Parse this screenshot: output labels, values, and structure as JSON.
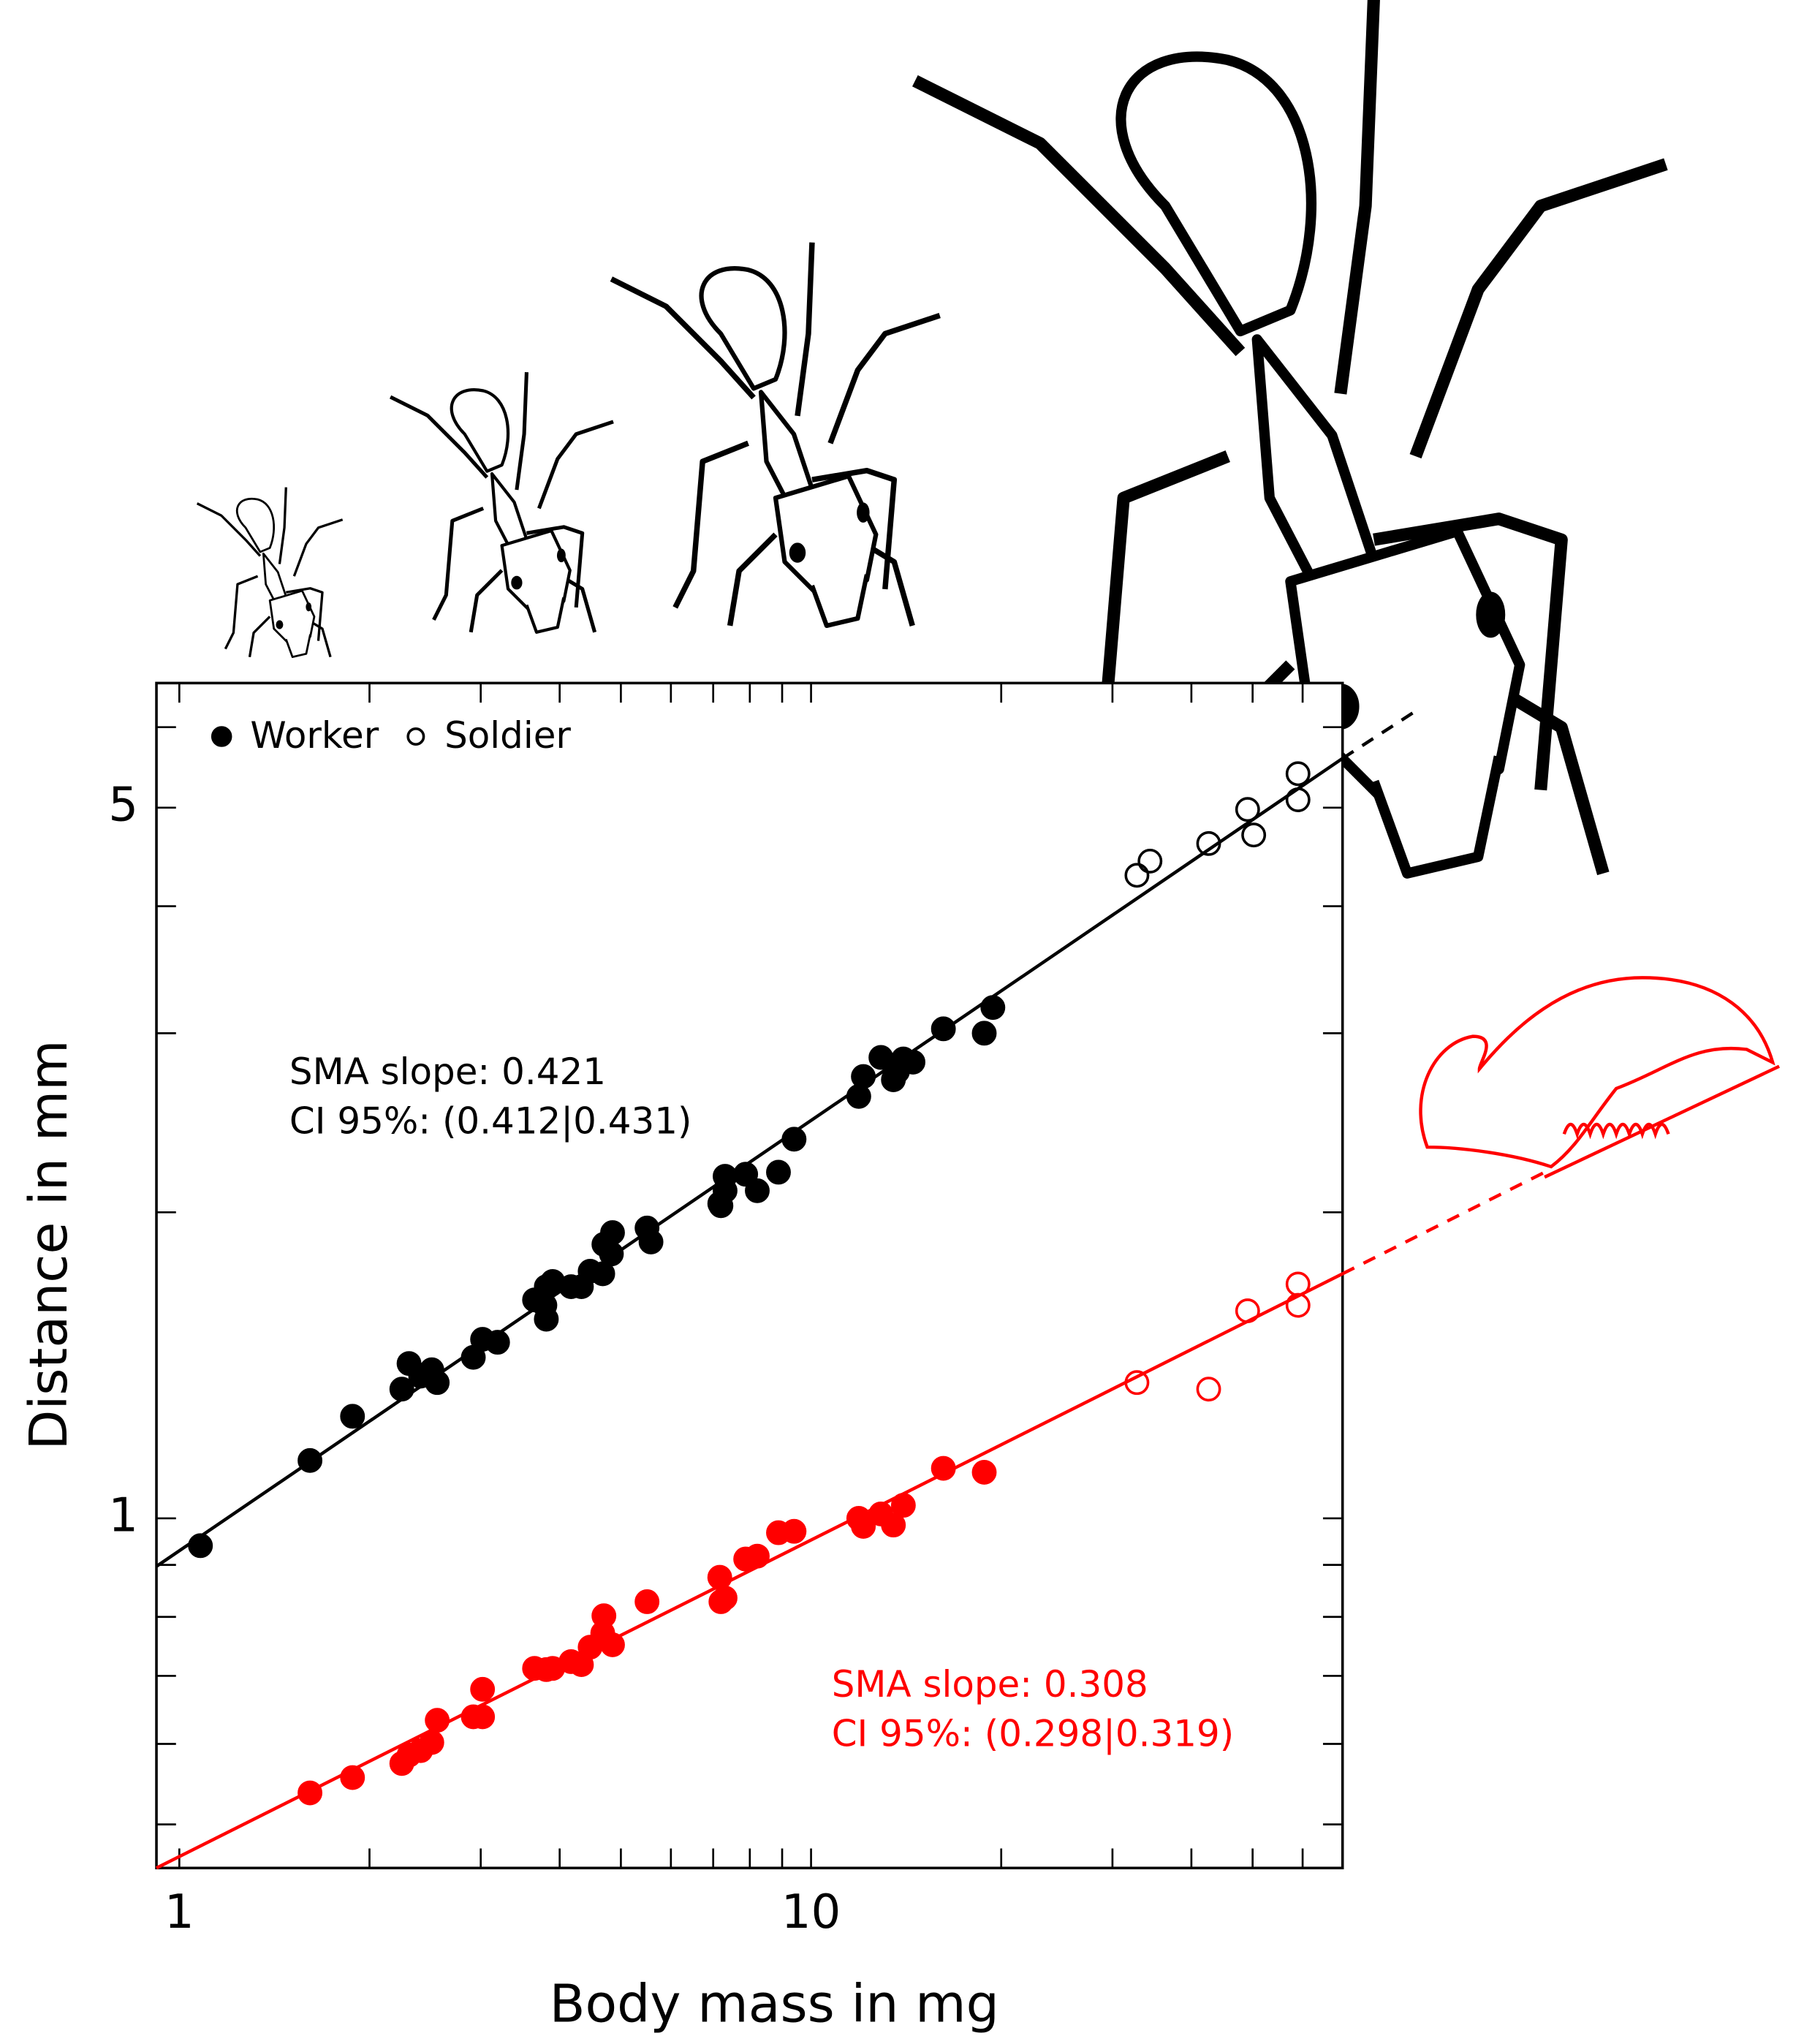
{
  "chart_data": {
    "type": "scatter",
    "xlabel": "Body mass in mg",
    "ylabel": "Distance in mm",
    "xscale": "log",
    "yscale": "log",
    "xlim": [
      0.92,
      69.4
    ],
    "ylim": [
      0.453,
      6.63
    ],
    "xticks": [
      1,
      10
    ],
    "yticks": [
      1,
      5
    ],
    "xminorticks": [
      2,
      3,
      4,
      5,
      6,
      7,
      8,
      9,
      20,
      30,
      40,
      50,
      60
    ],
    "yminorticks": [
      0.5,
      0.6,
      0.7,
      0.8,
      0.9,
      2,
      3,
      4,
      6
    ],
    "legend": [
      {
        "label": "Worker",
        "marker": "filled"
      },
      {
        "label": "Soldier",
        "marker": "open"
      }
    ],
    "series": [
      {
        "color": "#000000",
        "marker": "filled",
        "x": [
          1.08,
          1.61,
          1.88,
          2.25,
          2.31,
          2.41,
          2.51,
          2.56,
          2.92,
          3.02,
          3.19,
          3.65,
          3.81,
          3.9,
          3.81,
          3.79,
          4.17,
          4.33,
          4.47,
          4.68,
          4.7,
          4.85,
          4.83,
          5.5,
          5.58,
          7.17,
          7.31,
          7.31,
          7.2,
          7.88,
          8.22,
          8.88,
          9.4,
          11.9,
          12.1,
          12.9,
          13.5,
          13.7,
          14.0,
          14.5,
          16.2,
          18.8,
          19.4
        ],
        "y": [
          0.94,
          1.14,
          1.26,
          1.34,
          1.42,
          1.38,
          1.4,
          1.36,
          1.44,
          1.5,
          1.49,
          1.64,
          1.69,
          1.71,
          1.57,
          1.62,
          1.69,
          1.69,
          1.75,
          1.74,
          1.86,
          1.91,
          1.82,
          1.93,
          1.87,
          2.04,
          2.17,
          2.1,
          2.03,
          2.18,
          2.1,
          2.19,
          2.36,
          2.6,
          2.72,
          2.84,
          2.7,
          2.75,
          2.83,
          2.81,
          3.03,
          3.0,
          3.18
        ]
      },
      {
        "color": "#000000",
        "marker": "open",
        "x": [
          32.8,
          34.4,
          42.6,
          49.1,
          50.2,
          59.0,
          59.0
        ],
        "y": [
          4.29,
          4.43,
          4.61,
          4.98,
          4.7,
          5.4,
          5.09
        ]
      },
      {
        "color": "#ff0000",
        "marker": "filled",
        "x": [
          1.61,
          1.88,
          2.25,
          2.31,
          2.41,
          2.51,
          2.56,
          2.92,
          3.02,
          3.02,
          3.65,
          3.81,
          3.9,
          4.17,
          4.33,
          4.47,
          4.68,
          4.7,
          4.85,
          5.5,
          7.17,
          7.31,
          7.2,
          7.88,
          8.22,
          8.88,
          9.4,
          11.9,
          12.1,
          12.9,
          13.5,
          14.0,
          16.2,
          18.8
        ],
        "y": [
          0.537,
          0.556,
          0.574,
          0.585,
          0.591,
          0.602,
          0.633,
          0.638,
          0.638,
          0.679,
          0.712,
          0.71,
          0.712,
          0.723,
          0.718,
          0.747,
          0.771,
          0.802,
          0.751,
          0.828,
          0.875,
          0.835,
          0.828,
          0.912,
          0.918,
          0.968,
          0.971,
          1,
          0.982,
          1.01,
          0.985,
          1.03,
          1.12,
          1.11
        ]
      },
      {
        "color": "#ff0000",
        "marker": "open",
        "x": [
          32.8,
          42.6,
          49.1,
          59.0,
          59.0
        ],
        "y": [
          1.36,
          1.34,
          1.6,
          1.7,
          1.62
        ]
      }
    ],
    "fit_lines": [
      {
        "color": "#000000",
        "dashed": false,
        "x": [
          0.92,
          69.4
        ],
        "y": [
          0.897,
          5.59
        ]
      },
      {
        "color": "#000000",
        "dashed": true,
        "x": [
          69.4,
          92.3
        ],
        "y": [
          5.59,
          6.27
        ]
      },
      {
        "color": "#ff0000",
        "dashed": false,
        "x": [
          0.92,
          69.4
        ],
        "y": [
          0.453,
          1.74
        ]
      },
      {
        "color": "#ff0000",
        "dashed": true,
        "x": [
          69.4,
          145
        ],
        "y": [
          1.74,
          2.19
        ]
      }
    ],
    "annotations": [
      {
        "lines": [
          "SMA slope: 0.421",
          "CI 95%: (0.412|0.431)"
        ],
        "color": "#000000"
      },
      {
        "lines": [
          "SMA slope: 0.308",
          "CI 95%: (0.298|0.319)"
        ],
        "color": "#ff0000"
      }
    ]
  }
}
